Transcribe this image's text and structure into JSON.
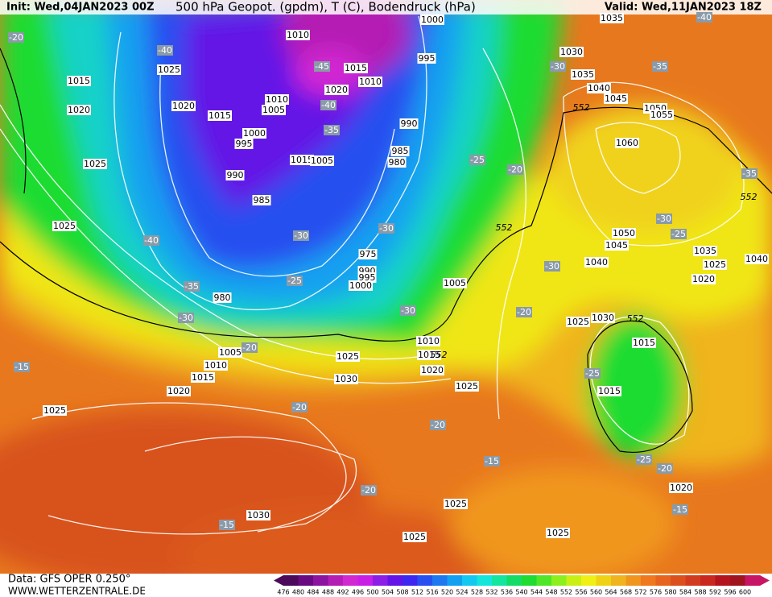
{
  "header": {
    "init": "Init: Wed,04JAN2023 00Z",
    "title": "500 hPa Geopot. (gpdm), T (C), Bodendruck (hPa)",
    "valid": "Valid: Wed,11JAN2023 18Z"
  },
  "footer": {
    "data": "Data: GFS OPER 0.250°",
    "site": "WWW.WETTERZENTRALE.DE"
  },
  "legend": {
    "labels": [
      476,
      480,
      484,
      488,
      492,
      496,
      500,
      504,
      508,
      512,
      516,
      520,
      524,
      528,
      532,
      536,
      540,
      544,
      548,
      552,
      556,
      560,
      564,
      568,
      572,
      576,
      580,
      584,
      588,
      592,
      596,
      600
    ],
    "colors": [
      "#4b0a5a",
      "#6a0a82",
      "#8c14a0",
      "#b41eb4",
      "#d228d2",
      "#c81ee6",
      "#8c1ee6",
      "#6414e6",
      "#3c28f0",
      "#2850f0",
      "#1e78f0",
      "#14a0f0",
      "#14c8f0",
      "#14e6dc",
      "#14e6a0",
      "#14dc64",
      "#1edc32",
      "#50e628",
      "#8cf01e",
      "#c8f014",
      "#f0f014",
      "#f0d214",
      "#f0b41e",
      "#f0961e",
      "#f0781e",
      "#e6641e",
      "#dc501e",
      "#d23c1e",
      "#c8281e",
      "#b4141e",
      "#a0141e",
      "#c81464"
    ]
  },
  "pressure_labels": [
    1010,
    1000,
    1025,
    1015,
    995,
    1010,
    1015,
    1020,
    1020,
    1020,
    1010,
    1005,
    1015,
    990,
    1000,
    995,
    985,
    1015,
    1005,
    980,
    1025,
    990,
    985,
    1025,
    975,
    990,
    995,
    1000,
    1005,
    980,
    1010,
    1005,
    1015,
    1025,
    1010,
    1020,
    1015,
    1030,
    1020,
    1025,
    1025,
    1030,
    1025,
    1025,
    1025,
    1030,
    1035,
    1040,
    1045,
    1050,
    1055,
    1060,
    1050,
    1045,
    1040,
    1035,
    1025,
    1040,
    1020,
    1030,
    1025,
    1015,
    1015,
    1020,
    1035
  ],
  "temperature_labels": [
    -20,
    -40,
    -45,
    -40,
    -35,
    -30,
    -35,
    -40,
    -35,
    -25,
    -20,
    -30,
    -30,
    -30,
    -25,
    -30,
    -40,
    -25,
    -35,
    -30,
    -30,
    -20,
    -20,
    -15,
    -20,
    -20,
    -25,
    -15,
    -20,
    -25,
    -20,
    -15,
    -15
  ],
  "geopotential_labels": [
    552,
    552,
    552,
    552,
    552
  ]
}
